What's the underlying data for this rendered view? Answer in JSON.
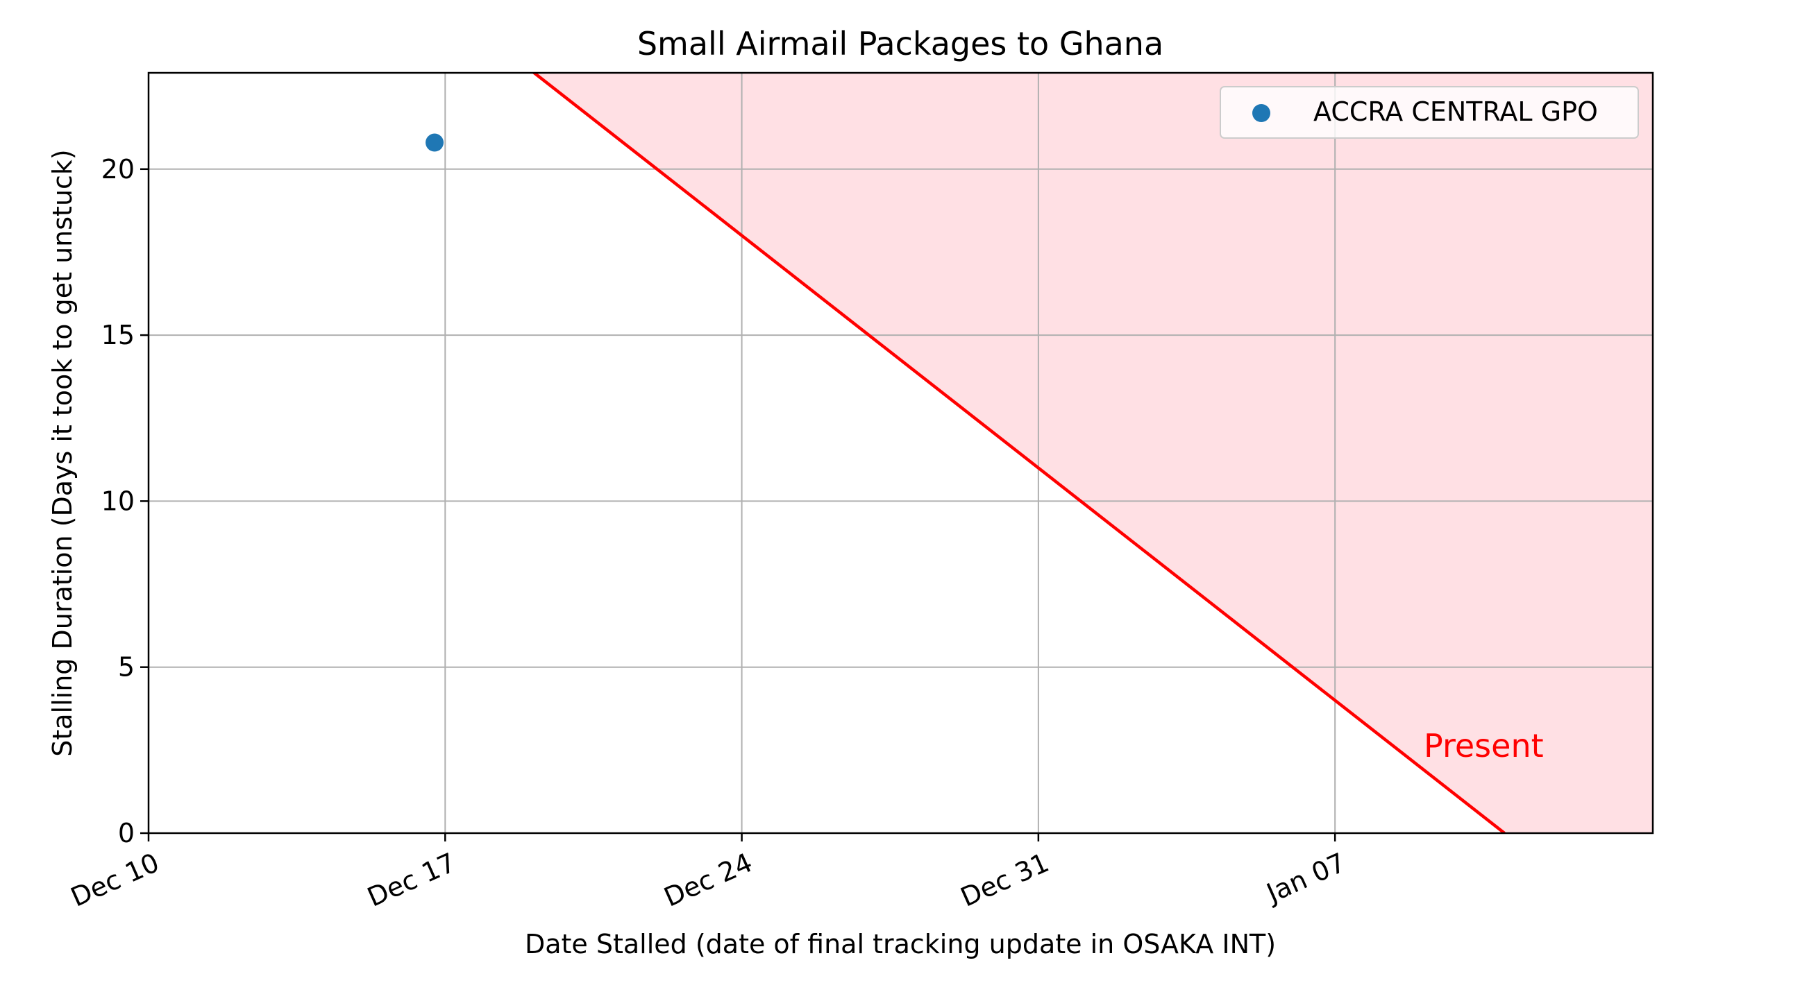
{
  "chart_data": {
    "type": "scatter",
    "title": "Small Airmail Packages to Ghana",
    "xlabel": "Date Stalled (date of final tracking update in OSAKA INT)",
    "ylabel": "Stalling Duration (Days it took to get unstuck)",
    "x_axis_type": "date",
    "xlim": [
      "2023-12-10",
      "2024-01-14T12:00"
    ],
    "ylim": [
      0,
      22.9
    ],
    "x_ticks": [
      {
        "date": "2023-12-10",
        "label": "Dec 10"
      },
      {
        "date": "2023-12-17",
        "label": "Dec 17"
      },
      {
        "date": "2023-12-24",
        "label": "Dec 24"
      },
      {
        "date": "2023-12-31",
        "label": "Dec 31"
      },
      {
        "date": "2024-01-07",
        "label": "Jan 07"
      }
    ],
    "y_ticks": [
      0,
      5,
      10,
      15,
      20
    ],
    "grid": true,
    "legend_position": "top-right",
    "series": [
      {
        "name": "ACCRA CENTRAL GPO",
        "color": "#1f77b4",
        "points": [
          {
            "x": "2023-12-16T18:00",
            "y": 20.8
          }
        ]
      }
    ],
    "present_line": {
      "label": "Present",
      "color": "#ff0000",
      "date": "2024-01-11",
      "points": [
        {
          "x": "2023-12-19",
          "y": 23
        },
        {
          "x": "2024-01-11",
          "y": 0
        }
      ]
    },
    "future_region": {
      "color": "#ffe0e4",
      "x_end": "2024-01-15"
    }
  }
}
